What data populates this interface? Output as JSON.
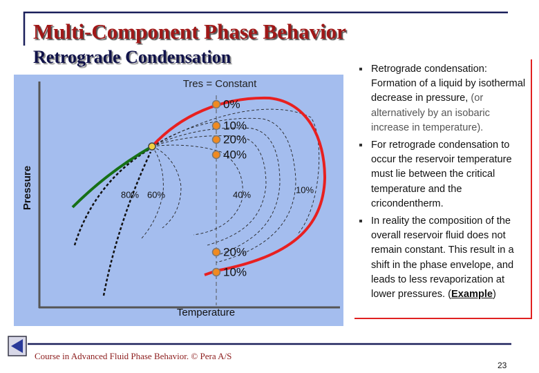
{
  "header": {
    "title": "Multi-Component Phase Behavior",
    "subtitle": "Retrograde Condensation"
  },
  "diagram": {
    "condition": "Tres = Constant",
    "x_axis": "Temperature",
    "y_axis": "Pressure",
    "labels": [
      "0%",
      "10%",
      "20%",
      "40%",
      "80%",
      "60%",
      "40%",
      "10%",
      "20%",
      "10%"
    ]
  },
  "bullets": [
    {
      "lead": "Retrograde condensation:",
      "text": "Formation of a liquid by isothermal decrease in pressure,",
      "note": "(or alternatively by an isobaric increase in temperature)."
    },
    {
      "text": "For retrograde condensation to occur the reservoir temperature must lie between the critical temperature and the cricondentherm."
    },
    {
      "text": "In reality the composition of the overall reservoir fluid does not remain constant. This result in a shift in the phase envelope, and leads to less revaporization at lower pressures.",
      "link_parts": [
        "(",
        "Example",
        ")"
      ]
    }
  ],
  "footer": {
    "credit": "Course in Advanced Fluid Phase Behavior. © Pera A/S",
    "page": "23"
  }
}
